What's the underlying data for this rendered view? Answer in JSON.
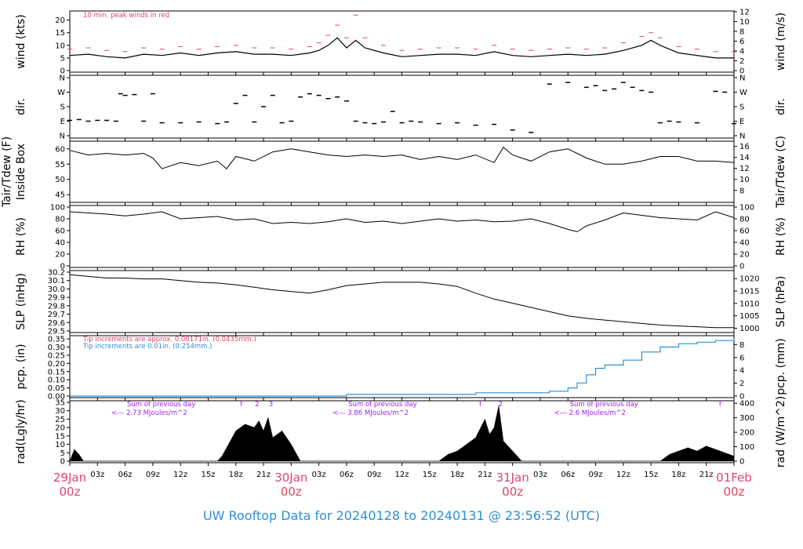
{
  "title": "UW Rooftop Data for 20240128  to  20240131 @ 23:56:52  (UTC)",
  "colors": {
    "peak": "#e0446a",
    "precip_fine": "#e0446a",
    "precip_coarse": "#2e8fd6",
    "radiation_note": "#a020f0",
    "date_label": "#e0446a",
    "title": "#2e8fd6"
  },
  "time_axis": {
    "range_hours": [
      0,
      72
    ],
    "minor_labels": [
      "03z",
      "06z",
      "09z",
      "12z",
      "15z",
      "18z",
      "21z",
      "03z",
      "06z",
      "09z",
      "12z",
      "15z",
      "18z",
      "21z",
      "03z",
      "06z",
      "09z",
      "12z",
      "15z",
      "18z",
      "21z"
    ],
    "date_labels": [
      {
        "hour": 0,
        "date": "29Jan",
        "time": "00z"
      },
      {
        "hour": 24,
        "date": "30Jan",
        "time": "00z"
      },
      {
        "hour": 48,
        "date": "31Jan",
        "time": "00z"
      },
      {
        "hour": 72,
        "date": "01Feb",
        "time": "00z"
      }
    ]
  },
  "chart_data": [
    {
      "type": "line",
      "id": "wind",
      "left_label": "wind (kts)",
      "right_label": "wind (m/s)",
      "left_ticks": [
        "0",
        "5",
        "10",
        "15",
        "20"
      ],
      "left_range": [
        0,
        23
      ],
      "right_ticks": [
        "0",
        "2",
        "4",
        "6",
        "8",
        "10",
        "12"
      ],
      "right_range": [
        0,
        11.83
      ],
      "annotation": "10 min. peak winds in red",
      "series": [
        {
          "name": "wind speed",
          "x": [
            0,
            2,
            4,
            6,
            8,
            10,
            12,
            14,
            16,
            18,
            20,
            22,
            24,
            26,
            27,
            28,
            29,
            30,
            31,
            32,
            34,
            36,
            38,
            40,
            42,
            44,
            46,
            48,
            50,
            52,
            54,
            56,
            58,
            60,
            62,
            63,
            64,
            66,
            68,
            70,
            72
          ],
          "y": [
            6,
            6.5,
            5.5,
            5,
            6.5,
            6,
            7,
            6,
            7,
            7.5,
            6.5,
            6.5,
            6,
            7,
            8,
            10,
            13,
            9,
            12,
            9,
            7,
            5.5,
            6,
            6.5,
            6.5,
            6,
            7.5,
            6,
            5.5,
            6,
            6.5,
            6,
            6.5,
            8,
            10,
            12,
            10,
            7,
            6,
            5,
            5
          ]
        },
        {
          "name": "10 min. peak winds",
          "x": [
            0,
            2,
            4,
            6,
            8,
            10,
            12,
            14,
            16,
            18,
            20,
            22,
            24,
            26,
            27,
            28,
            29,
            30,
            31,
            32,
            34,
            36,
            38,
            40,
            42,
            44,
            46,
            48,
            50,
            52,
            54,
            56,
            58,
            60,
            62,
            63,
            64,
            66,
            68,
            70,
            72
          ],
          "y": [
            8.5,
            9,
            8,
            7.5,
            9,
            8.5,
            9.5,
            8.5,
            9.5,
            10,
            9,
            9,
            8.5,
            9.5,
            11,
            14,
            18,
            13,
            22,
            13,
            10,
            8,
            8.5,
            9,
            9,
            8.5,
            10,
            8.5,
            8,
            8.5,
            9,
            8.5,
            9,
            11,
            13.5,
            15,
            13,
            9.5,
            8.5,
            7.5,
            7.5
          ]
        }
      ]
    },
    {
      "type": "scatter",
      "id": "dir",
      "left_label": "dir.",
      "right_label": "dir.",
      "left_ticks": [
        "N",
        "E",
        "S",
        "W",
        "N"
      ],
      "right_ticks": [
        "N",
        "E",
        "S",
        "W",
        "N"
      ],
      "range_deg": [
        0,
        360
      ],
      "series": [
        {
          "name": "wind direction",
          "x": [
            0,
            1,
            2,
            3,
            4,
            5,
            5.5,
            6,
            7,
            8,
            9,
            10,
            12,
            14,
            16,
            17,
            18,
            19,
            20,
            21,
            22,
            23,
            24,
            25,
            26,
            27,
            28,
            29,
            30,
            31,
            32,
            33,
            34,
            35,
            36,
            37,
            38,
            40,
            42,
            44,
            46,
            48,
            50,
            52,
            54,
            56,
            57,
            58,
            59,
            60,
            61,
            62,
            63,
            64,
            65,
            66,
            68,
            70,
            71,
            72
          ],
          "y": [
            95,
            100,
            90,
            95,
            95,
            90,
            260,
            250,
            255,
            90,
            260,
            80,
            80,
            85,
            75,
            85,
            200,
            250,
            85,
            180,
            250,
            80,
            90,
            240,
            260,
            250,
            230,
            240,
            215,
            90,
            80,
            75,
            85,
            150,
            80,
            90,
            85,
            75,
            80,
            65,
            70,
            35,
            20,
            320,
            330,
            300,
            310,
            280,
            290,
            330,
            300,
            280,
            270,
            80,
            90,
            85,
            80,
            275,
            270,
            75
          ]
        }
      ]
    },
    {
      "type": "line",
      "id": "temp",
      "left_label_lines": [
        "Tair/Tdew (F)",
        "Inside Box"
      ],
      "right_label": "Tair/Tdew (C)",
      "left_ticks": [
        "45",
        "50",
        "55",
        "60"
      ],
      "left_range": [
        43,
        62
      ],
      "right_ticks": [
        "8",
        "10",
        "12",
        "14",
        "16"
      ],
      "right_range": [
        6.11,
        16.67
      ],
      "series": [
        {
          "name": "inside box temperature",
          "x": [
            0,
            2,
            4,
            6,
            8,
            9,
            10,
            12,
            14,
            16,
            17,
            18,
            20,
            22,
            24,
            26,
            28,
            30,
            32,
            34,
            36,
            38,
            40,
            42,
            44,
            46,
            47,
            48,
            50,
            52,
            54,
            56,
            58,
            60,
            62,
            64,
            66,
            68,
            70,
            72
          ],
          "y": [
            59.5,
            58,
            58.5,
            58,
            58.5,
            57,
            53.5,
            55.5,
            54.5,
            56,
            53.5,
            57.5,
            56,
            59,
            60,
            59,
            58,
            57.5,
            58,
            57.5,
            58,
            56.5,
            57.5,
            56.5,
            58,
            55.5,
            60.5,
            58,
            56,
            59,
            60,
            57,
            55,
            55,
            56,
            57.5,
            57.5,
            56,
            56,
            55.5
          ]
        }
      ]
    },
    {
      "type": "line",
      "id": "rh",
      "left_label": "RH (%)",
      "right_label": "RH (%)",
      "left_ticks": [
        "0",
        "20",
        "40",
        "60",
        "80",
        "100"
      ],
      "right_ticks": [
        "0",
        "20",
        "40",
        "60",
        "80",
        "100"
      ],
      "range": [
        0,
        100
      ],
      "series": [
        {
          "name": "relative humidity",
          "x": [
            0,
            2,
            4,
            6,
            8,
            10,
            12,
            14,
            16,
            18,
            20,
            22,
            24,
            26,
            28,
            30,
            32,
            34,
            36,
            38,
            40,
            42,
            44,
            46,
            48,
            50,
            52,
            54,
            55,
            56,
            58,
            60,
            62,
            64,
            66,
            68,
            70,
            72
          ],
          "y": [
            92,
            90,
            88,
            85,
            88,
            92,
            80,
            82,
            84,
            78,
            80,
            72,
            74,
            72,
            75,
            80,
            74,
            76,
            72,
            76,
            80,
            76,
            78,
            75,
            76,
            80,
            72,
            62,
            58,
            68,
            78,
            90,
            86,
            82,
            80,
            78,
            92,
            82
          ]
        }
      ]
    },
    {
      "type": "line",
      "id": "slp",
      "left_label": "SLP (inHg)",
      "right_label": "SLP (hPa)",
      "left_ticks": [
        "29.5",
        "29.6",
        "29.7",
        "29.8",
        "29.9",
        "30.0",
        "30.1",
        "30.2"
      ],
      "left_range": [
        29.5,
        30.2
      ],
      "right_ticks": [
        "1000",
        "1005",
        "1010",
        "1015",
        "1020"
      ],
      "right_range": [
        998.9,
        1022.6
      ],
      "series": [
        {
          "name": "sea level pressure",
          "x": [
            0,
            2,
            4,
            6,
            8,
            10,
            12,
            14,
            16,
            18,
            20,
            22,
            24,
            26,
            28,
            30,
            32,
            34,
            36,
            38,
            40,
            42,
            44,
            46,
            48,
            50,
            52,
            54,
            56,
            58,
            60,
            62,
            64,
            66,
            68,
            70,
            72
          ],
          "y": [
            30.17,
            30.15,
            30.13,
            30.13,
            30.12,
            30.12,
            30.1,
            30.08,
            30.07,
            30.05,
            30.02,
            29.99,
            29.97,
            29.95,
            29.99,
            30.04,
            30.06,
            30.08,
            30.08,
            30.08,
            30.06,
            30.03,
            29.95,
            29.88,
            29.83,
            29.78,
            29.73,
            29.68,
            29.65,
            29.63,
            29.61,
            29.59,
            29.57,
            29.56,
            29.55,
            29.54,
            29.54
          ]
        }
      ]
    },
    {
      "type": "area",
      "id": "pcp",
      "left_label": "pcp. (in)",
      "right_label": "pcp. (mm)",
      "left_ticks": [
        "0.00",
        "0.05",
        "0.10",
        "0.15",
        "0.20",
        "0.25",
        "0.30",
        "0.35"
      ],
      "left_range": [
        0,
        0.36
      ],
      "right_ticks": [
        "0",
        "2",
        "4",
        "6",
        "8"
      ],
      "right_range": [
        0,
        9.14
      ],
      "notes": [
        "Tip increments are approx. 0.00171in. (0.0435mm.)",
        "Tip increments are 0.01in. (0.254mm.)"
      ],
      "series": [
        {
          "name": "accumulated precipitation",
          "x": [
            0,
            30,
            44,
            52,
            54,
            55,
            56,
            57,
            58,
            60,
            62,
            64,
            66,
            68,
            70,
            72
          ],
          "y": [
            0,
            0.01,
            0.02,
            0.03,
            0.05,
            0.08,
            0.13,
            0.17,
            0.19,
            0.22,
            0.27,
            0.3,
            0.32,
            0.33,
            0.34,
            0.35
          ]
        }
      ]
    },
    {
      "type": "area",
      "id": "rad",
      "left_label": "rad(Lgly/hr)",
      "right_label": "rad (W/m^2)",
      "left_ticks": [
        "0",
        "5",
        "10",
        "15",
        "20",
        "25",
        "30",
        "35"
      ],
      "left_range": [
        0,
        35
      ],
      "right_ticks": [
        "0",
        "100",
        "200",
        "300",
        "400"
      ],
      "right_range": [
        0,
        406.7
      ],
      "daily_notes": [
        {
          "hour": 4.5,
          "line1": "Sum of previous day",
          "line2": "<--- 2.73 MJoules/m^2"
        },
        {
          "hour": 28.5,
          "line1": "Sum of previous day",
          "line2": "<--- 3.86 MJoules/m^2"
        },
        {
          "hour": 52.5,
          "line1": "Sum of previous day",
          "line2": "<--- 2.6 MJoules/m^2"
        }
      ],
      "markers": [
        {
          "hour": 18.6,
          "label": "f"
        },
        {
          "hour": 20.3,
          "label": "2"
        },
        {
          "hour": 21.8,
          "label": "3"
        },
        {
          "hour": 44.5,
          "label": "f"
        },
        {
          "hour": 46.7,
          "label": "2"
        },
        {
          "hour": 70.5,
          "label": "f"
        }
      ],
      "series": [
        {
          "name": "solar radiation",
          "x": [
            0,
            0.5,
            1,
            1.5,
            16,
            16.5,
            17,
            18,
            19,
            20,
            20.5,
            21,
            21.5,
            22,
            23,
            24,
            25,
            40,
            40.5,
            41,
            42,
            43,
            44,
            45,
            45.5,
            46,
            46.5,
            47,
            48,
            49,
            64,
            64.5,
            65,
            66,
            67,
            68,
            69,
            70,
            71,
            72
          ],
          "y": [
            0,
            7,
            4,
            0,
            0,
            3,
            8,
            18,
            22,
            20,
            24,
            18,
            26,
            14,
            18,
            10,
            0,
            0,
            2,
            4,
            6,
            10,
            14,
            25,
            16,
            20,
            33,
            12,
            6,
            0,
            0,
            2,
            4,
            6,
            8,
            6,
            9,
            7,
            5,
            3
          ]
        }
      ]
    }
  ]
}
